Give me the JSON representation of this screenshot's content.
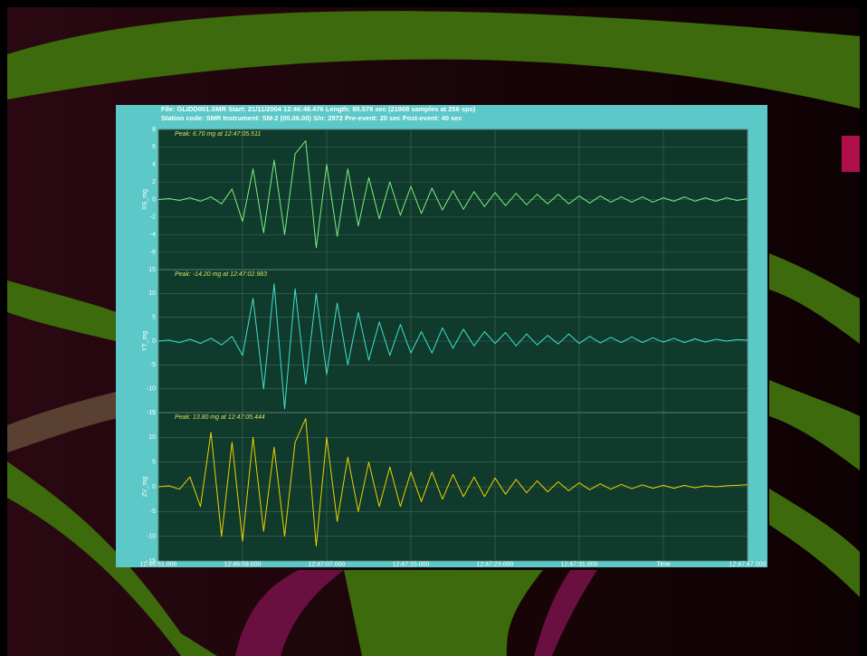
{
  "header": {
    "line1": "File: GLIDD001.SMR  Start: 21/11/2004 12:46:48.476 Length: 85.578 sec (21908 samples at 256 sps)",
    "line2": "Station code: SMR  Instrument: SM-2 (00.06.00)  S/n: 2972  Pre-event: 20 sec  Post-event: 40 sec"
  },
  "chart_data": [
    {
      "type": "line",
      "annotation": "Peak: 6.70 mg at 12:47:05.511",
      "y_label": "XS_mg",
      "color": "#7cf07c",
      "x": [
        "12:46:51.000",
        "12:46:52.000",
        "12:46:53.000",
        "12:46:54.000",
        "12:46:55.000",
        "12:46:56.000",
        "12:46:57.000",
        "12:46:58.000",
        "12:46:59.000",
        "12:47:00.000",
        "12:47:01.000",
        "12:47:02.000",
        "12:47:03.000",
        "12:47:04.000",
        "12:47:05.000",
        "12:47:06.000",
        "12:47:07.000",
        "12:47:08.000",
        "12:47:09.000",
        "12:47:10.000",
        "12:47:11.000",
        "12:47:12.000",
        "12:47:13.000",
        "12:47:14.000",
        "12:47:15.000",
        "12:47:16.000",
        "12:47:17.000",
        "12:47:18.000",
        "12:47:19.000",
        "12:47:20.000",
        "12:47:21.000",
        "12:47:22.000",
        "12:47:23.000",
        "12:47:24.000",
        "12:47:25.000",
        "12:47:26.000",
        "12:47:27.000",
        "12:47:28.000",
        "12:47:29.000",
        "12:47:30.000",
        "12:47:31.000",
        "12:47:32.000",
        "12:47:33.000",
        "12:47:34.000",
        "12:47:35.000",
        "12:47:36.000",
        "12:47:37.000",
        "12:47:38.000",
        "12:47:39.000",
        "12:47:40.000",
        "12:47:41.000",
        "12:47:42.000",
        "12:47:43.000",
        "12:47:44.000",
        "12:47:45.000",
        "12:47:46.000",
        "12:47:47.000"
      ],
      "values": [
        0,
        0.1,
        -0.1,
        0.2,
        -0.2,
        0.3,
        -0.5,
        1.2,
        -2.5,
        3.5,
        -3.8,
        4.5,
        -4,
        5.2,
        6.7,
        -5.5,
        4,
        -4.2,
        3.5,
        -3,
        2.5,
        -2.2,
        2,
        -1.8,
        1.5,
        -1.6,
        1.3,
        -1.2,
        1,
        -1.1,
        0.9,
        -0.8,
        0.8,
        -0.7,
        0.7,
        -0.6,
        0.6,
        -0.5,
        0.6,
        -0.5,
        0.4,
        -0.4,
        0.4,
        -0.3,
        0.3,
        -0.3,
        0.3,
        -0.3,
        0.2,
        -0.2,
        0.3,
        -0.2,
        0.2,
        -0.2,
        0.2,
        -0.1,
        0.1
      ],
      "xlim": [
        "12:46:51.000",
        "12:47:47.000"
      ],
      "ylim": [
        -8,
        8
      ],
      "yticks": [
        -6,
        -4,
        -2,
        0,
        2,
        4,
        6,
        8
      ],
      "grid": true
    },
    {
      "type": "line",
      "annotation": "Peak: -14.20 mg at 12:47:02.983",
      "y_label": "YT_mg",
      "color": "#40e0d0",
      "x": [
        "12:46:51.000",
        "12:46:52.000",
        "12:46:53.000",
        "12:46:54.000",
        "12:46:55.000",
        "12:46:56.000",
        "12:46:57.000",
        "12:46:58.000",
        "12:46:59.000",
        "12:47:00.000",
        "12:47:01.000",
        "12:47:02.000",
        "12:47:03.000",
        "12:47:04.000",
        "12:47:05.000",
        "12:47:06.000",
        "12:47:07.000",
        "12:47:08.000",
        "12:47:09.000",
        "12:47:10.000",
        "12:47:11.000",
        "12:47:12.000",
        "12:47:13.000",
        "12:47:14.000",
        "12:47:15.000",
        "12:47:16.000",
        "12:47:17.000",
        "12:47:18.000",
        "12:47:19.000",
        "12:47:20.000",
        "12:47:21.000",
        "12:47:22.000",
        "12:47:23.000",
        "12:47:24.000",
        "12:47:25.000",
        "12:47:26.000",
        "12:47:27.000",
        "12:47:28.000",
        "12:47:29.000",
        "12:47:30.000",
        "12:47:31.000",
        "12:47:32.000",
        "12:47:33.000",
        "12:47:34.000",
        "12:47:35.000",
        "12:47:36.000",
        "12:47:37.000",
        "12:47:38.000",
        "12:47:39.000",
        "12:47:40.000",
        "12:47:41.000",
        "12:47:42.000",
        "12:47:43.000",
        "12:47:44.000",
        "12:47:45.000",
        "12:47:46.000",
        "12:47:47.000"
      ],
      "values": [
        0,
        0.2,
        -0.3,
        0.4,
        -0.5,
        0.6,
        -0.8,
        1,
        -3,
        9,
        -10,
        12,
        -14.2,
        11,
        -9,
        10,
        -7,
        8,
        -5,
        6,
        -4,
        4,
        -3,
        3.5,
        -2.5,
        2,
        -2.5,
        2.8,
        -1.5,
        2.5,
        -1,
        2,
        -0.5,
        1.8,
        -1,
        1.5,
        -0.8,
        1.2,
        -0.6,
        1.5,
        -0.5,
        1,
        -0.4,
        0.8,
        -0.3,
        0.9,
        -0.3,
        0.7,
        -0.2,
        0.6,
        -0.3,
        0.5,
        -0.2,
        0.4,
        0,
        0.3,
        0.2
      ],
      "xlim": [
        "12:46:51.000",
        "12:47:47.000"
      ],
      "ylim": [
        -15,
        15
      ],
      "yticks": [
        -15,
        -10,
        -5,
        0,
        5,
        10,
        15
      ],
      "grid": true
    },
    {
      "type": "line",
      "annotation": "Peak: 13.80 mg at 12:47:05.444",
      "y_label": "ZV_mg",
      "color": "#f0d000",
      "x": [
        "12:46:51.000",
        "12:46:52.000",
        "12:46:53.000",
        "12:46:54.000",
        "12:46:55.000",
        "12:46:56.000",
        "12:46:57.000",
        "12:46:58.000",
        "12:46:59.000",
        "12:47:00.000",
        "12:47:01.000",
        "12:47:02.000",
        "12:47:03.000",
        "12:47:04.000",
        "12:47:05.000",
        "12:47:06.000",
        "12:47:07.000",
        "12:47:08.000",
        "12:47:09.000",
        "12:47:10.000",
        "12:47:11.000",
        "12:47:12.000",
        "12:47:13.000",
        "12:47:14.000",
        "12:47:15.000",
        "12:47:16.000",
        "12:47:17.000",
        "12:47:18.000",
        "12:47:19.000",
        "12:47:20.000",
        "12:47:21.000",
        "12:47:22.000",
        "12:47:23.000",
        "12:47:24.000",
        "12:47:25.000",
        "12:47:26.000",
        "12:47:27.000",
        "12:47:28.000",
        "12:47:29.000",
        "12:47:30.000",
        "12:47:31.000",
        "12:47:32.000",
        "12:47:33.000",
        "12:47:34.000",
        "12:47:35.000",
        "12:47:36.000",
        "12:47:37.000",
        "12:47:38.000",
        "12:47:39.000",
        "12:47:40.000",
        "12:47:41.000",
        "12:47:42.000",
        "12:47:43.000",
        "12:47:44.000",
        "12:47:45.000",
        "12:47:46.000",
        "12:47:47.000"
      ],
      "values": [
        0,
        0.2,
        -0.5,
        2,
        -4,
        11,
        -10,
        9,
        -11,
        10,
        -9,
        8,
        -10,
        9,
        13.8,
        -12,
        10,
        -7,
        6,
        -5,
        5,
        -4,
        4,
        -4,
        3,
        -3,
        3,
        -2.5,
        2.5,
        -2,
        2,
        -2,
        1.8,
        -1.5,
        1.5,
        -1.2,
        1.2,
        -1,
        1,
        -0.8,
        0.8,
        -0.6,
        0.6,
        -0.5,
        0.5,
        -0.4,
        0.4,
        -0.3,
        0.3,
        -0.3,
        0.3,
        -0.2,
        0.2,
        0,
        0.2,
        0.3,
        0.4
      ],
      "xlim": [
        "12:46:51.000",
        "12:47:47.000"
      ],
      "ylim": [
        -15,
        15
      ],
      "yticks": [
        -15,
        -10,
        -5,
        0,
        5,
        10,
        15
      ],
      "xticks": [
        "12:46:51.000",
        "12:46:59.000",
        "12:47:07.000",
        "12:47:15.000",
        "12:47:23.000",
        "12:47:31.000",
        {
          "value": "12:47:39.000",
          "label": "Time"
        },
        "12:47:47.000"
      ],
      "grid": true
    }
  ]
}
